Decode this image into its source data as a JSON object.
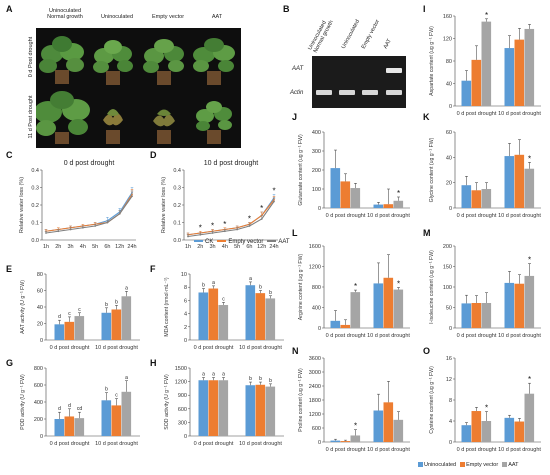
{
  "colors": {
    "blue": "#5b9bd5",
    "orange": "#ed7d31",
    "gray": "#a5a5a5",
    "ck": "#5b9bd5",
    "ev": "#ed7d31",
    "aat": "#7f7f7f"
  },
  "legend": {
    "items": [
      "Uninoculated",
      "Empty vector",
      "AAT"
    ]
  },
  "panel_A": {
    "label": "A",
    "columns": [
      "Uninoculated\nNormal growth",
      "Uninoculated",
      "Empty vector",
      "AAT"
    ],
    "rows": [
      "0 d Post drought",
      "11 d Post drought"
    ]
  },
  "panel_B": {
    "label": "B",
    "lanes": [
      "Uninoculated\nNormal growth",
      "Uninoculated",
      "Empty vector",
      "AAT"
    ],
    "rows": [
      "AAT",
      "Actin"
    ]
  },
  "chart_data": [
    {
      "id": "C",
      "type": "line",
      "title": "0 d post drought",
      "ylabel": "Relative water loss (%)",
      "categories": [
        "1h",
        "2h",
        "3h",
        "4h",
        "5h",
        "6h",
        "12h",
        "24h"
      ],
      "yticks": [
        "0.0",
        "0.1",
        "0.2",
        "0.3",
        "0.4"
      ],
      "ylim": [
        0,
        0.4
      ],
      "series": [
        {
          "name": "CK",
          "values": [
            0.05,
            0.06,
            0.07,
            0.08,
            0.09,
            0.11,
            0.16,
            0.27
          ],
          "err": [
            0.01,
            0.01,
            0.01,
            0.01,
            0.01,
            0.02,
            0.02,
            0.03
          ]
        },
        {
          "name": "Empty vector",
          "values": [
            0.05,
            0.06,
            0.07,
            0.08,
            0.09,
            0.1,
            0.15,
            0.26
          ],
          "err": [
            0.01,
            0.01,
            0.01,
            0.01,
            0.01,
            0.01,
            0.02,
            0.03
          ]
        },
        {
          "name": "AAT",
          "values": [
            0.04,
            0.05,
            0.06,
            0.07,
            0.08,
            0.1,
            0.15,
            0.25
          ],
          "err": [
            0.01,
            0.01,
            0.01,
            0.01,
            0.01,
            0.01,
            0.02,
            0.03
          ]
        }
      ],
      "stars": []
    },
    {
      "id": "D",
      "type": "line",
      "title": "10 d post drought",
      "ylabel": "Relative water loss (%)",
      "categories": [
        "1h",
        "2h",
        "3h",
        "4h",
        "5h",
        "6h",
        "12h",
        "24h"
      ],
      "yticks": [
        "0.0",
        "0.1",
        "0.2",
        "0.3",
        "0.4"
      ],
      "ylim": [
        0,
        0.4
      ],
      "series": [
        {
          "name": "CK",
          "values": [
            0.03,
            0.04,
            0.05,
            0.06,
            0.07,
            0.09,
            0.14,
            0.24
          ],
          "err": [
            0.01,
            0.01,
            0.01,
            0.01,
            0.01,
            0.01,
            0.02,
            0.02
          ]
        },
        {
          "name": "Empty vector",
          "values": [
            0.03,
            0.04,
            0.05,
            0.06,
            0.07,
            0.09,
            0.14,
            0.23
          ],
          "err": [
            0.01,
            0.01,
            0.01,
            0.01,
            0.01,
            0.01,
            0.02,
            0.02
          ]
        },
        {
          "name": "AAT",
          "values": [
            0.02,
            0.03,
            0.04,
            0.05,
            0.06,
            0.08,
            0.12,
            0.22
          ],
          "err": [
            0.01,
            0.01,
            0.01,
            0.01,
            0.01,
            0.01,
            0.02,
            0.02
          ]
        }
      ],
      "stars": [
        1,
        2,
        3,
        5,
        6,
        7
      ]
    },
    {
      "id": "E",
      "type": "bar",
      "ylabel": "AAT activity (U g⁻¹ FW)",
      "yticks": [
        "0",
        "20",
        "40",
        "60",
        "80"
      ],
      "ylim": [
        0,
        80
      ],
      "categories": [
        "0 d post drought",
        "10 d post drought"
      ],
      "series": [
        {
          "name": "Uninoculated",
          "values": [
            19,
            33
          ],
          "err": [
            5,
            6
          ]
        },
        {
          "name": "Empty vector",
          "values": [
            22,
            37
          ],
          "err": [
            6,
            5
          ]
        },
        {
          "name": "AAT",
          "values": [
            29,
            53
          ],
          "err": [
            4,
            6
          ]
        }
      ],
      "letters": [
        [
          "d",
          "c",
          "c"
        ],
        [
          "b",
          "b",
          "a"
        ]
      ],
      "stars": []
    },
    {
      "id": "F",
      "type": "bar",
      "ylabel": "MDA content (nmol·mL⁻¹)",
      "yticks": [
        "0",
        "2",
        "4",
        "6",
        "8",
        "10"
      ],
      "ylim": [
        0,
        10
      ],
      "categories": [
        "0 d post drought",
        "10 d post drought"
      ],
      "series": [
        {
          "name": "Uninoculated",
          "values": [
            7.2,
            8.3
          ],
          "err": [
            0.6,
            0.5
          ]
        },
        {
          "name": "Empty vector",
          "values": [
            7.8,
            7.1
          ],
          "err": [
            0.4,
            0.4
          ]
        },
        {
          "name": "AAT",
          "values": [
            5.3,
            6.3
          ],
          "err": [
            0.4,
            0.4
          ]
        }
      ],
      "letters": [
        [
          "b",
          "a",
          "c"
        ],
        [
          "a",
          "b",
          "b"
        ]
      ],
      "stars": []
    },
    {
      "id": "G",
      "type": "bar",
      "ylabel": "POD activity (U g⁻¹ FW)",
      "yticks": [
        "0",
        "200",
        "400",
        "600",
        "800"
      ],
      "ylim": [
        0,
        800
      ],
      "categories": [
        "0 d post drought",
        "10 d post drought"
      ],
      "series": [
        {
          "name": "Uninoculated",
          "values": [
            200,
            420
          ],
          "err": [
            80,
            90
          ]
        },
        {
          "name": "Empty vector",
          "values": [
            230,
            360
          ],
          "err": [
            90,
            80
          ]
        },
        {
          "name": "AAT",
          "values": [
            210,
            520
          ],
          "err": [
            70,
            130
          ]
        }
      ],
      "letters": [
        [
          "d",
          "d",
          "cd"
        ],
        [
          "b",
          "c",
          "a"
        ]
      ],
      "stars": []
    },
    {
      "id": "H",
      "type": "bar",
      "ylabel": "SOD activity (U g⁻¹ FW)",
      "yticks": [
        "0",
        "300",
        "600",
        "900",
        "1200",
        "1500"
      ],
      "ylim": [
        0,
        1500
      ],
      "categories": [
        "0 d post drought",
        "10 d post drought"
      ],
      "series": [
        {
          "name": "Uninoculated",
          "values": [
            1230,
            1120
          ],
          "err": [
            60,
            70
          ]
        },
        {
          "name": "Empty vector",
          "values": [
            1230,
            1130
          ],
          "err": [
            60,
            60
          ]
        },
        {
          "name": "AAT",
          "values": [
            1230,
            1090
          ],
          "err": [
            60,
            60
          ]
        }
      ],
      "letters": [
        [
          "a",
          "a",
          "a"
        ],
        [
          "b",
          "b",
          "b"
        ]
      ],
      "stars": []
    },
    {
      "id": "I",
      "type": "bar",
      "ylabel": "Aspartate content (ug g⁻¹ FW)",
      "yticks": [
        "0",
        "40",
        "80",
        "120",
        "160"
      ],
      "ylim": [
        0,
        160
      ],
      "categories": [
        "0 d post drought",
        "10 d post drought"
      ],
      "series": [
        {
          "name": "Uninoculated",
          "values": [
            45,
            103
          ],
          "err": [
            18,
            22
          ]
        },
        {
          "name": "Empty vector",
          "values": [
            82,
            118
          ],
          "err": [
            25,
            20
          ]
        },
        {
          "name": "AAT",
          "values": [
            150,
            137
          ],
          "err": [
            5,
            8
          ]
        }
      ],
      "letters": [],
      "stars": [
        [
          2,
          0
        ]
      ]
    },
    {
      "id": "J",
      "type": "bar",
      "ylabel": "Glutamate content (ug g⁻¹ FW)",
      "yticks": [
        "0",
        "100",
        "200",
        "300",
        "400"
      ],
      "ylim": [
        0,
        400
      ],
      "categories": [
        "0 d post drought",
        "10 d post drought"
      ],
      "series": [
        {
          "name": "Uninoculated",
          "values": [
            210,
            18
          ],
          "err": [
            95,
            12
          ]
        },
        {
          "name": "Empty vector",
          "values": [
            140,
            20
          ],
          "err": [
            40,
            80
          ]
        },
        {
          "name": "AAT",
          "values": [
            105,
            38
          ],
          "err": [
            25,
            20
          ]
        }
      ],
      "letters": [],
      "stars": [
        [
          2,
          1
        ]
      ]
    },
    {
      "id": "K",
      "type": "bar",
      "ylabel": "Glycine content (ug g⁻¹ FW)",
      "yticks": [
        "0",
        "20",
        "40",
        "60"
      ],
      "ylim": [
        0,
        60
      ],
      "categories": [
        "0 d post drought",
        "10 d post drought"
      ],
      "series": [
        {
          "name": "Uninoculated",
          "values": [
            18,
            41
          ],
          "err": [
            7,
            10
          ]
        },
        {
          "name": "Empty vector",
          "values": [
            14,
            42
          ],
          "err": [
            6,
            12
          ]
        },
        {
          "name": "AAT",
          "values": [
            15,
            31
          ],
          "err": [
            5,
            5
          ]
        }
      ],
      "letters": [],
      "stars": [
        [
          2,
          1
        ]
      ]
    },
    {
      "id": "L",
      "type": "bar",
      "ylabel": "Arginine content (ug g⁻¹ FW)",
      "yticks": [
        "0",
        "400",
        "800",
        "1200",
        "1600"
      ],
      "ylim": [
        0,
        1600
      ],
      "categories": [
        "0 d post drought",
        "10 d post drought"
      ],
      "series": [
        {
          "name": "Uninoculated",
          "values": [
            140,
            870
          ],
          "err": [
            200,
            400
          ]
        },
        {
          "name": "Empty vector",
          "values": [
            60,
            980
          ],
          "err": [
            100,
            450
          ]
        },
        {
          "name": "AAT",
          "values": [
            700,
            750
          ],
          "err": [
            40,
            40
          ]
        }
      ],
      "letters": [],
      "stars": [
        [
          2,
          0
        ],
        [
          2,
          1
        ]
      ]
    },
    {
      "id": "M",
      "type": "bar",
      "ylabel": "I-isoleucine content (ug g⁻¹ FW)",
      "yticks": [
        "0",
        "50",
        "100",
        "150",
        "200"
      ],
      "ylim": [
        0,
        200
      ],
      "categories": [
        "0 d post drought",
        "10 d post drought"
      ],
      "series": [
        {
          "name": "Uninoculated",
          "values": [
            60,
            110
          ],
          "err": [
            20,
            28
          ]
        },
        {
          "name": "Empty vector",
          "values": [
            61,
            108
          ],
          "err": [
            18,
            22
          ]
        },
        {
          "name": "AAT",
          "values": [
            61,
            127
          ],
          "err": [
            25,
            30
          ]
        }
      ],
      "letters": [],
      "stars": [
        [
          2,
          1
        ]
      ]
    },
    {
      "id": "N",
      "type": "bar",
      "ylabel": "Proline content (ug g⁻¹ FW)",
      "yticks": [
        "0",
        "600",
        "1200",
        "1800",
        "2400",
        "3000",
        "3600"
      ],
      "ylim": [
        0,
        3600
      ],
      "categories": [
        "0 d post drought",
        "10 d post drought"
      ],
      "series": [
        {
          "name": "Uninoculated",
          "values": [
            60,
            1350
          ],
          "err": [
            60,
            700
          ]
        },
        {
          "name": "Empty vector",
          "values": [
            40,
            1700
          ],
          "err": [
            40,
            900
          ]
        },
        {
          "name": "AAT",
          "values": [
            280,
            950
          ],
          "err": [
            250,
            350
          ]
        }
      ],
      "letters": [],
      "stars": [
        [
          2,
          0
        ]
      ]
    },
    {
      "id": "O",
      "type": "bar",
      "ylabel": "Cysteine content (ug g⁻¹ FW)",
      "yticks": [
        "0",
        "4",
        "8",
        "12",
        "16"
      ],
      "ylim": [
        0,
        16
      ],
      "categories": [
        "0 d post drought",
        "10 d post drought"
      ],
      "series": [
        {
          "name": "Uninoculated",
          "values": [
            3.2,
            4.6
          ],
          "err": [
            0.5,
            0.5
          ]
        },
        {
          "name": "Empty vector",
          "values": [
            5.9,
            3.9
          ],
          "err": [
            0.7,
            0.6
          ]
        },
        {
          "name": "AAT",
          "values": [
            4.0,
            9.2
          ],
          "err": [
            1.8,
            2.0
          ]
        }
      ],
      "letters": [],
      "stars": [
        [
          2,
          0
        ],
        [
          2,
          1
        ]
      ]
    }
  ]
}
